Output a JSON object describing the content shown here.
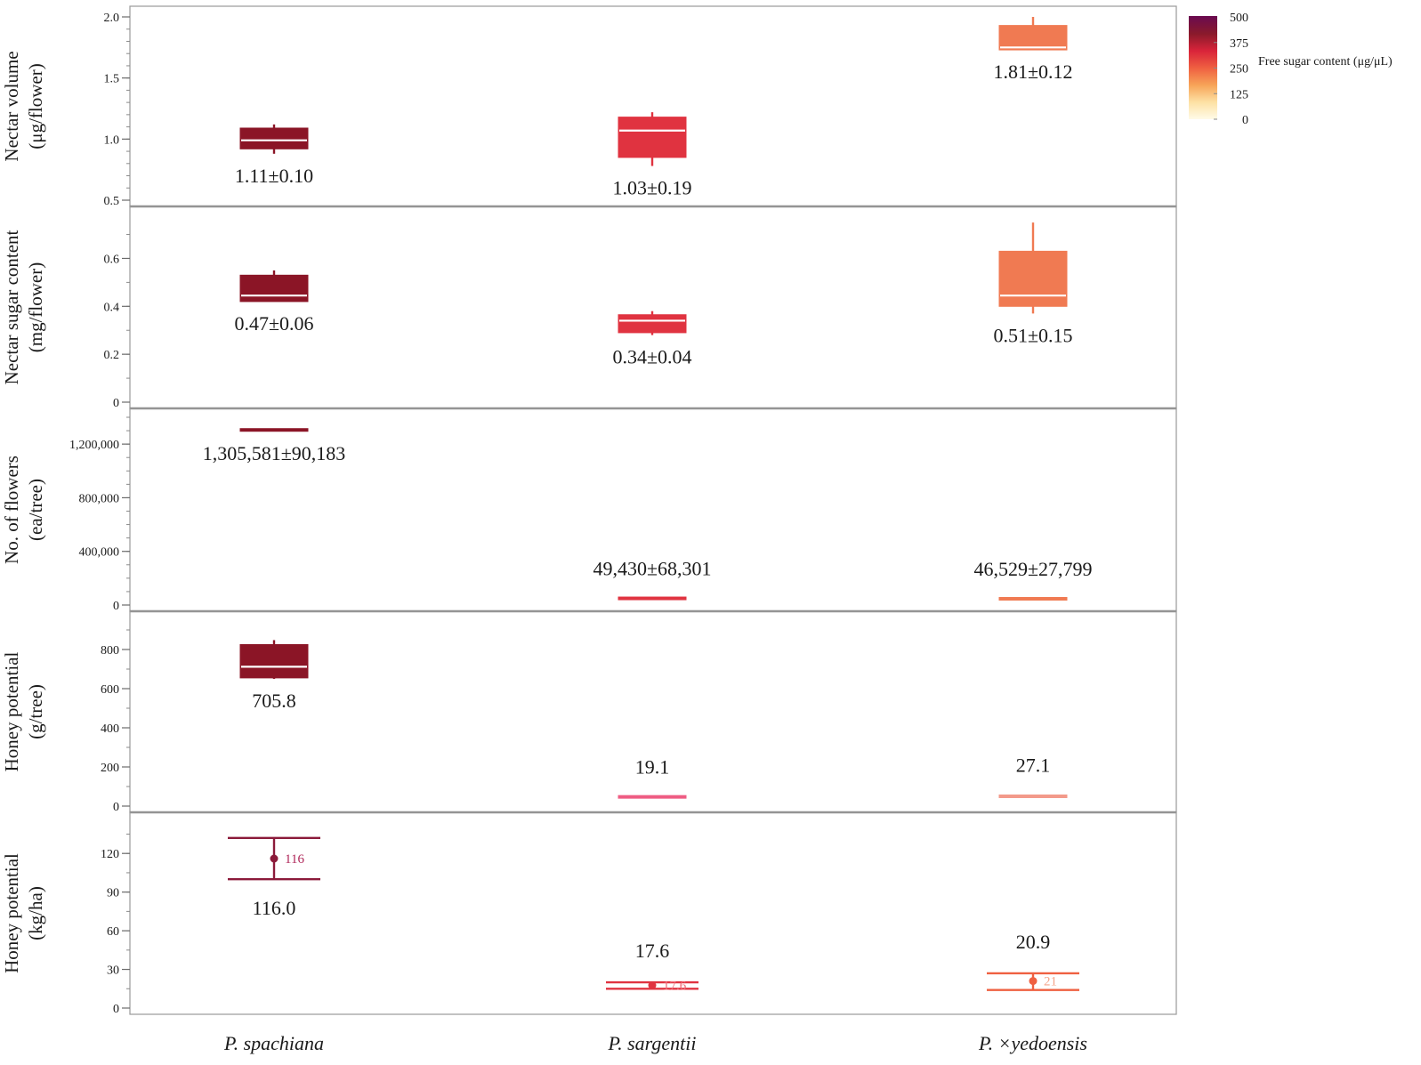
{
  "chart_data": {
    "type": "box",
    "categories": [
      "P. spachiana",
      "P. sargentii",
      "P. ×yedoensis"
    ],
    "colorbar": {
      "title": "Free sugar content (μg/μL)",
      "ticks": [
        "500",
        "375",
        "250",
        "125",
        "0"
      ],
      "range": [
        0,
        500
      ],
      "colors": [
        "#fffbe8",
        "#fde1a4",
        "#f7a458",
        "#ef6041",
        "#d9243a",
        "#8a1a2b",
        "#6b0b4e"
      ]
    },
    "panels": [
      {
        "ylabel": [
          "Nectar volume",
          "(μg/flower)"
        ],
        "ylim": [
          0.5,
          2.0
        ],
        "yticks": [
          0.5,
          1.0,
          1.5,
          2.0
        ],
        "tick_labels": [
          "0.5",
          "1.0",
          "1.5",
          "2.0"
        ],
        "minor_step": 0.1,
        "kind": "box",
        "items": [
          {
            "color": "#8b1526",
            "q1": 0.92,
            "median": 0.99,
            "q3": 1.09,
            "min": 0.88,
            "max": 1.12,
            "label": "1.11±0.10"
          },
          {
            "color": "#e03340",
            "q1": 0.85,
            "median": 1.07,
            "q3": 1.18,
            "min": 0.78,
            "max": 1.22,
            "label": "1.03±0.19"
          },
          {
            "color": "#f07a52",
            "q1": 1.73,
            "median": 1.75,
            "q3": 1.93,
            "min": 1.73,
            "max": 2.0,
            "label": "1.81±0.12"
          }
        ]
      },
      {
        "ylabel": [
          "Nectar sugar content",
          "(mg/flower)"
        ],
        "ylim": [
          0,
          0.78
        ],
        "yticks": [
          0,
          0.2,
          0.4,
          0.6
        ],
        "tick_labels": [
          "0",
          "0.2",
          "0.4",
          "0.6"
        ],
        "minor_step": 0.1,
        "kind": "box",
        "items": [
          {
            "color": "#8b1526",
            "q1": 0.42,
            "median": 0.445,
            "q3": 0.53,
            "min": 0.42,
            "max": 0.55,
            "label": "0.47±0.06"
          },
          {
            "color": "#e03340",
            "q1": 0.29,
            "median": 0.34,
            "q3": 0.365,
            "min": 0.28,
            "max": 0.38,
            "label": "0.34±0.04"
          },
          {
            "color": "#f07a52",
            "q1": 0.4,
            "median": 0.445,
            "q3": 0.63,
            "min": 0.37,
            "max": 0.75,
            "label": "0.51±0.15"
          }
        ]
      },
      {
        "ylabel": [
          "No. of flowers",
          "(ea/tree)"
        ],
        "ylim": [
          0,
          1400000
        ],
        "yticks": [
          0,
          400000,
          800000,
          1200000
        ],
        "tick_labels": [
          "0",
          "400,000",
          "800,000",
          "1,200,000"
        ],
        "minor_step": 100000,
        "kind": "box",
        "items": [
          {
            "color": "#8b1526",
            "q1": 1305581,
            "median": 1305581,
            "q3": 1305581,
            "min": 1305581,
            "max": 1305581,
            "label": "1,305,581±90,183"
          },
          {
            "color": "#e03340",
            "q1": 49430,
            "median": 49430,
            "q3": 49430,
            "min": 49430,
            "max": 49430,
            "label": "49,430±68,301"
          },
          {
            "color": "#f07a52",
            "q1": 46529,
            "median": 46529,
            "q3": 46529,
            "min": 46529,
            "max": 46529,
            "label": "46,529±27,799"
          }
        ]
      },
      {
        "ylabel": [
          "Honey potential",
          "(g/tree)"
        ],
        "ylim": [
          0,
          950
        ],
        "yticks": [
          0,
          200,
          400,
          600,
          800
        ],
        "tick_labels": [
          "0",
          "200",
          "400",
          "600",
          "800"
        ],
        "minor_step": 100,
        "kind": "box",
        "items": [
          {
            "color": "#8b1526",
            "q1": 655,
            "median": 712,
            "q3": 825,
            "min": 650,
            "max": 848,
            "label": "705.8"
          },
          {
            "color": "#ee5c83",
            "q1": 47,
            "median": 47,
            "q3": 47,
            "min": 47,
            "max": 47,
            "label": "19.1"
          },
          {
            "color": "#f39a8a",
            "q1": 45,
            "median": 50,
            "q3": 55,
            "min": 45,
            "max": 57,
            "label": "27.1"
          }
        ]
      },
      {
        "ylabel": [
          "Honey potential",
          "(kg/ha)"
        ],
        "ylim": [
          0,
          145
        ],
        "yticks": [
          0,
          30,
          60,
          90,
          120
        ],
        "tick_labels": [
          "0",
          "30",
          "60",
          "90",
          "120"
        ],
        "minor_step": 15,
        "kind": "errorbar",
        "items": [
          {
            "color": "#8b1a3a",
            "point_color": "#b0285a",
            "mean": 116,
            "low": 100,
            "high": 132,
            "point_label": "116",
            "label": "116.0"
          },
          {
            "color": "#e03340",
            "point_color": "#ef6f7a",
            "mean": 17.6,
            "low": 15,
            "high": 20,
            "point_label": "17.6",
            "label": "17.6"
          },
          {
            "color": "#ef6041",
            "point_color": "#f5a48a",
            "mean": 21,
            "low": 14,
            "high": 27,
            "point_label": "21",
            "label": "20.9"
          }
        ]
      }
    ]
  }
}
